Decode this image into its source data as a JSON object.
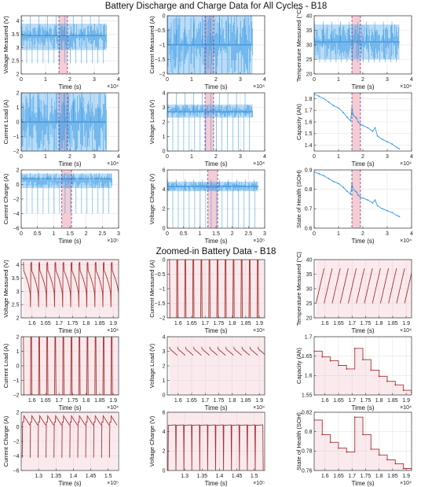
{
  "titles": {
    "top": "Battery Discharge and Charge Data for All Cycles - B18",
    "bottom": "Zoomed-in Battery Data - B18"
  },
  "colors": {
    "signal": "#3a9be6",
    "zoom_signal": "#a83232",
    "highlight_fill": "#f2c4cc",
    "highlight_edge": "#7a3b8c"
  },
  "chart_data": [
    {
      "id": "p1",
      "type": "line",
      "xlabel": "Time (s)",
      "ylabel": "Voltage Measured (V)",
      "xlim": [
        0,
        4
      ],
      "ylim": [
        2,
        4.2
      ],
      "xticks": [
        0,
        1,
        2,
        3,
        4
      ],
      "yticks": [
        2,
        2.5,
        3,
        3.5,
        4
      ],
      "x_exponent": "×10⁴",
      "data_extent": [
        0,
        3.5
      ],
      "band": [
        1.55,
        1.9
      ],
      "signal": {
        "kind": "dense",
        "center": 3.45,
        "upper": 3.9,
        "lower": 2.9,
        "spike_min": 2.4,
        "spike_max": 4.2
      }
    },
    {
      "id": "p2",
      "type": "line",
      "xlabel": "Time (s)",
      "ylabel": "Current Measured (A)",
      "xlim": [
        0,
        4
      ],
      "ylim": [
        -2,
        0
      ],
      "xticks": [
        0,
        1,
        2,
        3,
        4
      ],
      "yticks": [
        -2,
        -1.5,
        -1,
        -0.5,
        0
      ],
      "x_exponent": "×10⁴",
      "data_extent": [
        0,
        3.5
      ],
      "band": [
        1.55,
        1.9
      ],
      "signal": {
        "kind": "dense",
        "center": -1.0,
        "upper": 0,
        "lower": -2,
        "spike_min": -2,
        "spike_max": 0
      }
    },
    {
      "id": "p3",
      "type": "line",
      "xlabel": "Time (s)",
      "ylabel": "Temperature Measured (°C)",
      "xlim": [
        0,
        4
      ],
      "ylim": [
        20,
        40
      ],
      "xticks": [
        0,
        1,
        2,
        3,
        4
      ],
      "yticks": [
        20,
        25,
        30,
        35,
        40
      ],
      "x_exponent": "×10⁴",
      "data_extent": [
        0,
        3.5
      ],
      "band": [
        1.55,
        1.9
      ],
      "signal": {
        "kind": "dense",
        "center": 31,
        "upper": 37,
        "lower": 25,
        "spike_min": 24,
        "spike_max": 38
      }
    },
    {
      "id": "p4",
      "type": "line",
      "xlabel": "Time (s)",
      "ylabel": "Current Load (A)",
      "xlim": [
        0,
        4
      ],
      "ylim": [
        -2,
        2
      ],
      "xticks": [
        0,
        1,
        2,
        3,
        4
      ],
      "yticks": [
        -2,
        -1,
        0,
        1,
        2
      ],
      "x_exponent": "×10⁴",
      "data_extent": [
        0,
        3.5
      ],
      "band": [
        1.55,
        1.9
      ],
      "signal": {
        "kind": "dense",
        "center": 0,
        "upper": 2,
        "lower": -2,
        "spike_min": -2,
        "spike_max": 2
      }
    },
    {
      "id": "p5",
      "type": "line",
      "xlabel": "Time (s)",
      "ylabel": "Voltage Load (V)",
      "xlim": [
        0,
        4
      ],
      "ylim": [
        0,
        4
      ],
      "xticks": [
        0,
        1,
        2,
        3,
        4
      ],
      "yticks": [
        0,
        1,
        2,
        3,
        4
      ],
      "x_exponent": "×10⁴",
      "data_extent": [
        0,
        3.5
      ],
      "band": [
        1.55,
        1.9
      ],
      "signal": {
        "kind": "dense",
        "center": 2.7,
        "upper": 3.2,
        "lower": 2.3,
        "spike_min": 0,
        "spike_max": 4
      }
    },
    {
      "id": "p6",
      "type": "line",
      "xlabel": "Time (s)",
      "ylabel": "Capacity (Ah)",
      "xlim": [
        0,
        4
      ],
      "ylim": [
        1.35,
        1.85
      ],
      "xticks": [
        0,
        1,
        2,
        3,
        4
      ],
      "yticks": [
        1.4,
        1.5,
        1.6,
        1.7,
        1.8
      ],
      "x_exponent": "×10⁴",
      "band": [
        1.55,
        1.9
      ],
      "x": [
        0.0,
        0.2,
        0.4,
        0.6,
        0.8,
        1.0,
        1.2,
        1.35,
        1.5,
        1.55,
        1.6,
        1.7,
        1.75,
        1.8,
        1.9,
        2.0,
        2.2,
        2.4,
        2.5,
        2.6,
        2.8,
        3.0,
        3.2,
        3.4,
        3.5
      ],
      "values": [
        1.84,
        1.82,
        1.8,
        1.77,
        1.74,
        1.72,
        1.68,
        1.64,
        1.61,
        1.72,
        1.66,
        1.64,
        1.63,
        1.6,
        1.58,
        1.57,
        1.55,
        1.52,
        1.55,
        1.48,
        1.45,
        1.43,
        1.41,
        1.38,
        1.37
      ]
    },
    {
      "id": "p7",
      "type": "line",
      "xlabel": "Time (s)",
      "ylabel": "Current Charge (A)",
      "xlim": [
        0,
        3
      ],
      "ylim": [
        -6,
        2
      ],
      "xticks": [
        0,
        0.5,
        1,
        1.5,
        2,
        2.5,
        3
      ],
      "yticks": [
        -6,
        -4,
        -2,
        0,
        2
      ],
      "x_exponent": "×10⁵",
      "data_extent": [
        0,
        2.8
      ],
      "band": [
        1.25,
        1.55
      ],
      "signal": {
        "kind": "dense",
        "center": 0.8,
        "upper": 1.5,
        "lower": -0.5,
        "spike_min": -4,
        "spike_max": 1.6
      }
    },
    {
      "id": "p8",
      "type": "line",
      "xlabel": "Time (s)",
      "ylabel": "Voltage Charge (V)",
      "xlim": [
        0,
        3
      ],
      "ylim": [
        0,
        6
      ],
      "xticks": [
        0,
        0.5,
        1,
        1.5,
        2,
        2.5,
        3
      ],
      "yticks": [
        0,
        2,
        4,
        6
      ],
      "x_exponent": "×10⁵",
      "data_extent": [
        0,
        2.8
      ],
      "band": [
        1.25,
        1.55
      ],
      "signal": {
        "kind": "dense",
        "center": 4.3,
        "upper": 4.8,
        "lower": 3.8,
        "spike_min": 0,
        "spike_max": 5
      }
    },
    {
      "id": "p9",
      "type": "line",
      "xlabel": "Time (s)",
      "ylabel": "State of Health (SOH)",
      "xlim": [
        0,
        4
      ],
      "ylim": [
        0.6,
        0.9
      ],
      "xticks": [
        0,
        1,
        2,
        3,
        4
      ],
      "yticks": [
        0.6,
        0.7,
        0.8,
        0.9
      ],
      "x_exponent": "×10⁴",
      "band": [
        1.55,
        1.9
      ],
      "x": [
        0.0,
        0.2,
        0.4,
        0.6,
        0.8,
        1.0,
        1.2,
        1.35,
        1.5,
        1.55,
        1.6,
        1.7,
        1.75,
        1.8,
        1.9,
        2.0,
        2.2,
        2.4,
        2.5,
        2.6,
        2.8,
        3.0,
        3.2,
        3.4,
        3.5
      ],
      "values": [
        0.89,
        0.88,
        0.87,
        0.855,
        0.84,
        0.83,
        0.81,
        0.79,
        0.775,
        0.83,
        0.8,
        0.79,
        0.785,
        0.77,
        0.76,
        0.755,
        0.745,
        0.73,
        0.745,
        0.715,
        0.7,
        0.69,
        0.68,
        0.665,
        0.66
      ]
    },
    {
      "id": "z1",
      "type": "line",
      "xlabel": "Time (s)",
      "ylabel": "Voltage Measured (V)",
      "xlim": [
        1.56,
        1.92
      ],
      "ylim": [
        2,
        4.2
      ],
      "xticks": [
        1.6,
        1.65,
        1.7,
        1.75,
        1.8,
        1.85,
        1.9
      ],
      "yticks": [
        2,
        2.5,
        3,
        3.5,
        4
      ],
      "x_exponent": "×10⁴",
      "signal": {
        "kind": "cycles",
        "start": 1.567,
        "period": 0.02975,
        "count": 12,
        "y_high": 4.1,
        "y_low": 2.4,
        "shape": "discharge_v"
      }
    },
    {
      "id": "z2",
      "type": "line",
      "xlabel": "Time (s)",
      "ylabel": "Current Measured (A)",
      "xlim": [
        1.56,
        1.92
      ],
      "ylim": [
        -2,
        0
      ],
      "xticks": [
        1.6,
        1.65,
        1.7,
        1.75,
        1.8,
        1.85,
        1.9
      ],
      "yticks": [
        -2,
        -1.5,
        -1,
        -0.5,
        0
      ],
      "x_exponent": "×10⁴",
      "signal": {
        "kind": "cycles",
        "start": 1.567,
        "period": 0.02975,
        "count": 12,
        "y_high": 0,
        "y_low": -2,
        "shape": "square"
      }
    },
    {
      "id": "z3",
      "type": "line",
      "xlabel": "Time (s)",
      "ylabel": "Temperature Measured (°C)",
      "xlim": [
        1.56,
        1.92
      ],
      "ylim": [
        20,
        40
      ],
      "xticks": [
        1.6,
        1.65,
        1.7,
        1.75,
        1.8,
        1.85,
        1.9
      ],
      "yticks": [
        20,
        25,
        30,
        35,
        40
      ],
      "x_exponent": "×10⁴",
      "signal": {
        "kind": "cycles",
        "start": 1.567,
        "period": 0.02975,
        "count": 12,
        "y_high": 37,
        "y_low": 25,
        "shape": "ramp"
      }
    },
    {
      "id": "z4",
      "type": "line",
      "xlabel": "Time (s)",
      "ylabel": "Current Load (A)",
      "xlim": [
        1.56,
        1.92
      ],
      "ylim": [
        -2,
        2
      ],
      "xticks": [
        1.6,
        1.65,
        1.7,
        1.75,
        1.8,
        1.85,
        1.9
      ],
      "yticks": [
        -2,
        -1,
        0,
        1,
        2
      ],
      "x_exponent": "×10⁴",
      "signal": {
        "kind": "cycles",
        "start": 1.567,
        "period": 0.02975,
        "count": 12,
        "y_high": 2,
        "y_low": -2,
        "shape": "square"
      }
    },
    {
      "id": "z5",
      "type": "line",
      "xlabel": "Time (s)",
      "ylabel": "Voltage Load (V)",
      "xlim": [
        1.56,
        1.92
      ],
      "ylim": [
        0,
        4
      ],
      "xticks": [
        1.6,
        1.65,
        1.7,
        1.75,
        1.8,
        1.85,
        1.9
      ],
      "yticks": [
        0,
        1,
        2,
        3,
        4
      ],
      "x_exponent": "×10⁴",
      "signal": {
        "kind": "cycles",
        "start": 1.567,
        "period": 0.02975,
        "count": 12,
        "y_high": 3.2,
        "y_low": 2.4,
        "shape": "load_v"
      }
    },
    {
      "id": "z6",
      "type": "line",
      "xlabel": "Time (s)",
      "ylabel": "Capacity (Ah)",
      "xlim": [
        1.56,
        1.92
      ],
      "ylim": [
        1.55,
        1.7
      ],
      "xticks": [
        1.6,
        1.65,
        1.7,
        1.75,
        1.8,
        1.85,
        1.9
      ],
      "yticks": [
        1.55,
        1.6,
        1.65,
        1.7
      ],
      "x_exponent": "×10⁴",
      "step": true,
      "x": [
        1.56,
        1.59,
        1.62,
        1.65,
        1.68,
        1.71,
        1.74,
        1.77,
        1.8,
        1.83,
        1.86,
        1.89,
        1.92
      ],
      "values": [
        1.663,
        1.648,
        1.638,
        1.626,
        1.617,
        1.67,
        1.641,
        1.614,
        1.598,
        1.585,
        1.576,
        1.562,
        1.556
      ]
    },
    {
      "id": "z7",
      "type": "line",
      "xlabel": "Time (s)",
      "ylabel": "Current Charge (A)",
      "xlim": [
        1.25,
        1.53
      ],
      "ylim": [
        -6,
        2
      ],
      "xticks": [
        1.3,
        1.35,
        1.4,
        1.45,
        1.5
      ],
      "yticks": [
        -6,
        -4,
        -2,
        0,
        2
      ],
      "x_exponent": "×10⁵",
      "signal": {
        "kind": "cycles",
        "start": 1.252,
        "period": 0.0228,
        "count": 12,
        "y_high": 1.5,
        "y_low": -4.2,
        "shape": "charge_i"
      }
    },
    {
      "id": "z8",
      "type": "line",
      "xlabel": "Time (s)",
      "ylabel": "Voltage Charge (V)",
      "xlim": [
        1.25,
        1.53
      ],
      "ylim": [
        0,
        6
      ],
      "xticks": [
        1.3,
        1.35,
        1.4,
        1.45,
        1.5
      ],
      "yticks": [
        0,
        2,
        4,
        6
      ],
      "x_exponent": "×10⁵",
      "signal": {
        "kind": "cycles",
        "start": 1.252,
        "period": 0.0228,
        "count": 12,
        "y_high": 4.7,
        "y_low": 0,
        "shape": "charge_v"
      }
    },
    {
      "id": "z9",
      "type": "line",
      "xlabel": "Time (s)",
      "ylabel": "State of Health (SOH)",
      "xlim": [
        1.56,
        1.92
      ],
      "ylim": [
        0.76,
        0.82
      ],
      "xticks": [
        1.6,
        1.65,
        1.7,
        1.75,
        1.8,
        1.85,
        1.9
      ],
      "yticks": [
        0.76,
        0.78,
        0.8,
        0.82
      ],
      "x_exponent": "×10⁴",
      "step": true,
      "x": [
        1.56,
        1.59,
        1.62,
        1.65,
        1.68,
        1.71,
        1.74,
        1.77,
        1.8,
        1.83,
        1.86,
        1.89,
        1.92
      ],
      "values": [
        0.812,
        0.797,
        0.789,
        0.783,
        0.779,
        0.815,
        0.797,
        0.782,
        0.776,
        0.771,
        0.767,
        0.762,
        0.759
      ]
    }
  ]
}
